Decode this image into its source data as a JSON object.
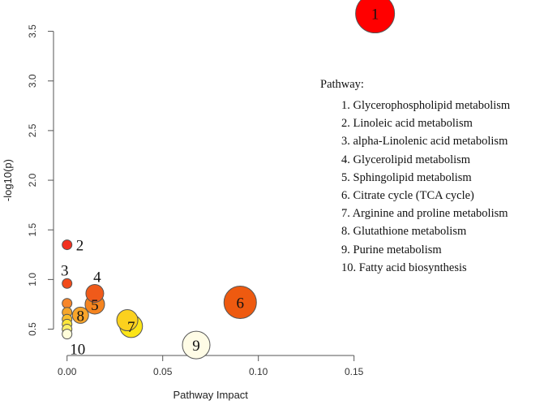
{
  "chart_data": {
    "type": "scatter",
    "title": "",
    "xlabel": "Pathway Impact",
    "ylabel": "-log10(p)",
    "xlim": [
      -0.002,
      0.162
    ],
    "ylim": [
      0.3,
      3.75
    ],
    "xticks": [
      0.0,
      0.05,
      0.1,
      0.15
    ],
    "xtick_labels": [
      "0.00",
      "0.05",
      "0.10",
      "0.15"
    ],
    "yticks": [
      0.5,
      1.0,
      1.5,
      2.0,
      2.5,
      3.0,
      3.5
    ],
    "ytick_labels": [
      "0.5",
      "1.0",
      "1.5",
      "2.0",
      "2.5",
      "3.0",
      "3.5"
    ],
    "points": [
      {
        "label": "1",
        "x": 0.161,
        "y": 3.68,
        "size": 24,
        "color": "#ff0000"
      },
      {
        "label": "2",
        "x": 0.0,
        "y": 1.35,
        "size": 6,
        "color": "#f2301f"
      },
      {
        "label": "3",
        "x": 0.0,
        "y": 0.96,
        "size": 6,
        "color": "#f24a1a"
      },
      {
        "label": "4",
        "x": 0.0145,
        "y": 0.86,
        "size": 11,
        "color": "#f05a1a"
      },
      {
        "label": "5",
        "x": 0.0145,
        "y": 0.75,
        "size": 12,
        "color": "#f5841f"
      },
      {
        "label": "",
        "x": 0.0,
        "y": 0.76,
        "size": 6,
        "color": "#f7862a"
      },
      {
        "label": "",
        "x": 0.0,
        "y": 0.67,
        "size": 6,
        "color": "#f7a62a"
      },
      {
        "label": "8",
        "x": 0.007,
        "y": 0.64,
        "size": 10,
        "color": "#f9a52a"
      },
      {
        "label": "",
        "x": 0.0,
        "y": 0.6,
        "size": 6,
        "color": "#fbc02a"
      },
      {
        "label": "6",
        "x": 0.0905,
        "y": 0.77,
        "size": 20,
        "color": "#ee5a10"
      },
      {
        "label": "",
        "x": 0.0315,
        "y": 0.59,
        "size": 13,
        "color": "#fbd11e"
      },
      {
        "label": "7",
        "x": 0.0335,
        "y": 0.53,
        "size": 14,
        "color": "#fce518"
      },
      {
        "label": "",
        "x": 0.0,
        "y": 0.55,
        "size": 6,
        "color": "#fce63a"
      },
      {
        "label": "",
        "x": 0.0,
        "y": 0.5,
        "size": 6,
        "color": "#fdf06a"
      },
      {
        "label": "10",
        "x": 0.0,
        "y": 0.45,
        "size": 6,
        "color": "#fffdda"
      },
      {
        "label": "9",
        "x": 0.0675,
        "y": 0.34,
        "size": 17,
        "color": "#fffce6"
      }
    ],
    "legend_title": "Pathway:",
    "legend_items": [
      "1. Glycerophospholipid metabolism",
      "2. Linoleic acid metabolism",
      "3. alpha-Linolenic acid metabolism",
      "4. Glycerolipid metabolism",
      "5. Sphingolipid metabolism",
      "6. Citrate cycle (TCA cycle)",
      "7. Arginine and proline metabolism",
      "8. Glutathione metabolism",
      "9. Purine metabolism",
      "10. Fatty acid biosynthesis"
    ],
    "legend_position": "right"
  }
}
